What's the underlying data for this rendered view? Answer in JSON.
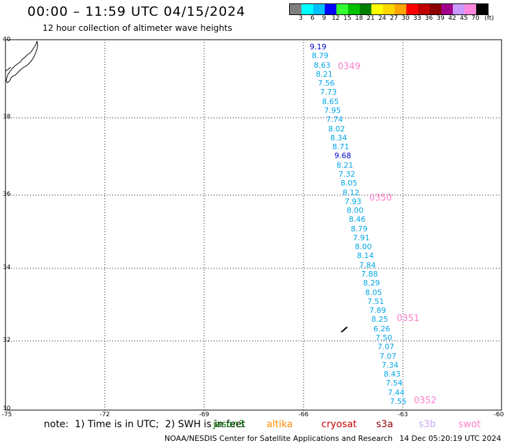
{
  "title": "00:00 – 11:59 UTC 04/15/2024",
  "subtitle": "12 hour collection of altimeter wave heights",
  "colorbar": {
    "colors": [
      "#808080",
      "#00ffff",
      "#00bfff",
      "#0000ff",
      "#33ff33",
      "#00c000",
      "#008000",
      "#ffff00",
      "#ffd700",
      "#ffa500",
      "#ff0000",
      "#c00000",
      "#8b0000",
      "#a0008c",
      "#cc99ff",
      "#ff88dd",
      "#000000"
    ],
    "labels": [
      "3",
      "6",
      "9",
      "12",
      "15",
      "18",
      "21",
      "24",
      "27",
      "30",
      "33",
      "36",
      "39",
      "42",
      "45",
      "70"
    ],
    "unit": "(ft)"
  },
  "axes": {
    "lat_labels": [
      "40",
      "38",
      "36",
      "34",
      "32",
      "30"
    ],
    "lon_labels": [
      "-75",
      "-72",
      "-69",
      "-66",
      "-63",
      "-60"
    ],
    "lat_range": [
      30,
      40
    ],
    "lon_range": [
      -75,
      -60
    ]
  },
  "wave_heights": [
    {
      "text": "9.19",
      "color": "#0000cc"
    },
    {
      "text": "8.79",
      "color": "#00a6e6"
    },
    {
      "text": "8.63",
      "color": "#00a6e6"
    },
    {
      "text": "8.21",
      "color": "#00a6e6"
    },
    {
      "text": "7.56",
      "color": "#00a6e6"
    },
    {
      "text": "7.73",
      "color": "#00a6e6"
    },
    {
      "text": "8.65",
      "color": "#00a6e6"
    },
    {
      "text": "7.95",
      "color": "#00a6e6"
    },
    {
      "text": "7.74",
      "color": "#00a6e6"
    },
    {
      "text": "8.02",
      "color": "#00a6e6"
    },
    {
      "text": "8.34",
      "color": "#00a6e6"
    },
    {
      "text": "8.71",
      "color": "#00a6e6"
    },
    {
      "text": "9.68",
      "color": "#0000cc"
    },
    {
      "text": "8.21",
      "color": "#00a6e6"
    },
    {
      "text": "7.32",
      "color": "#00a6e6"
    },
    {
      "text": "8.05",
      "color": "#00a6e6"
    },
    {
      "text": "8.12",
      "color": "#00a6e6"
    },
    {
      "text": "7.93",
      "color": "#00a6e6"
    },
    {
      "text": "8.00",
      "color": "#00a6e6"
    },
    {
      "text": "8.46",
      "color": "#00a6e6"
    },
    {
      "text": "8.79",
      "color": "#00a6e6"
    },
    {
      "text": "7.91",
      "color": "#00a6e6"
    },
    {
      "text": "8.00",
      "color": "#00a6e6"
    },
    {
      "text": "8.14",
      "color": "#00a6e6"
    },
    {
      "text": "7.84",
      "color": "#00a6e6"
    },
    {
      "text": "7.88",
      "color": "#00a6e6"
    },
    {
      "text": "8.29",
      "color": "#00a6e6"
    },
    {
      "text": "8.05",
      "color": "#00a6e6"
    },
    {
      "text": "7.51",
      "color": "#00a6e6"
    },
    {
      "text": "7.89",
      "color": "#00a6e6"
    },
    {
      "text": "8.25",
      "color": "#00a6e6"
    },
    {
      "text": "6.26",
      "color": "#00a6e6"
    },
    {
      "text": "7.50",
      "color": "#00a6e6"
    },
    {
      "text": "7.07",
      "color": "#00a6e6"
    },
    {
      "text": "7.07",
      "color": "#00a6e6"
    },
    {
      "text": "7.34",
      "color": "#00a6e6"
    },
    {
      "text": "8.43",
      "color": "#00a6e6"
    },
    {
      "text": "7.54",
      "color": "#00a6e6"
    },
    {
      "text": "7.44",
      "color": "#00a6e6"
    },
    {
      "text": "7.55",
      "color": "#00a6e6"
    }
  ],
  "time_labels": [
    {
      "text": "0349",
      "color": "#ff80cc"
    },
    {
      "text": "0350",
      "color": "#ff80cc"
    },
    {
      "text": "0351",
      "color": "#ff80cc"
    },
    {
      "text": "0352",
      "color": "#ff80cc"
    }
  ],
  "footer": {
    "note": "note:  1) Time is in UTC;  2) SWH is in feet",
    "legend": [
      {
        "name": "jason3",
        "color": "#008000"
      },
      {
        "name": "altika",
        "color": "#ff8c00"
      },
      {
        "name": "cryosat",
        "color": "#cc0000"
      },
      {
        "name": "s3a",
        "color": "#8b0000"
      },
      {
        "name": "s3b",
        "color": "#c8a8f0"
      },
      {
        "name": "swot",
        "color": "#ff80cc"
      }
    ],
    "credit": "NOAA/NESDIS Center for Satellite Applications and Research",
    "timestamp": "14 Dec 05:20:19 UTC 2024"
  }
}
